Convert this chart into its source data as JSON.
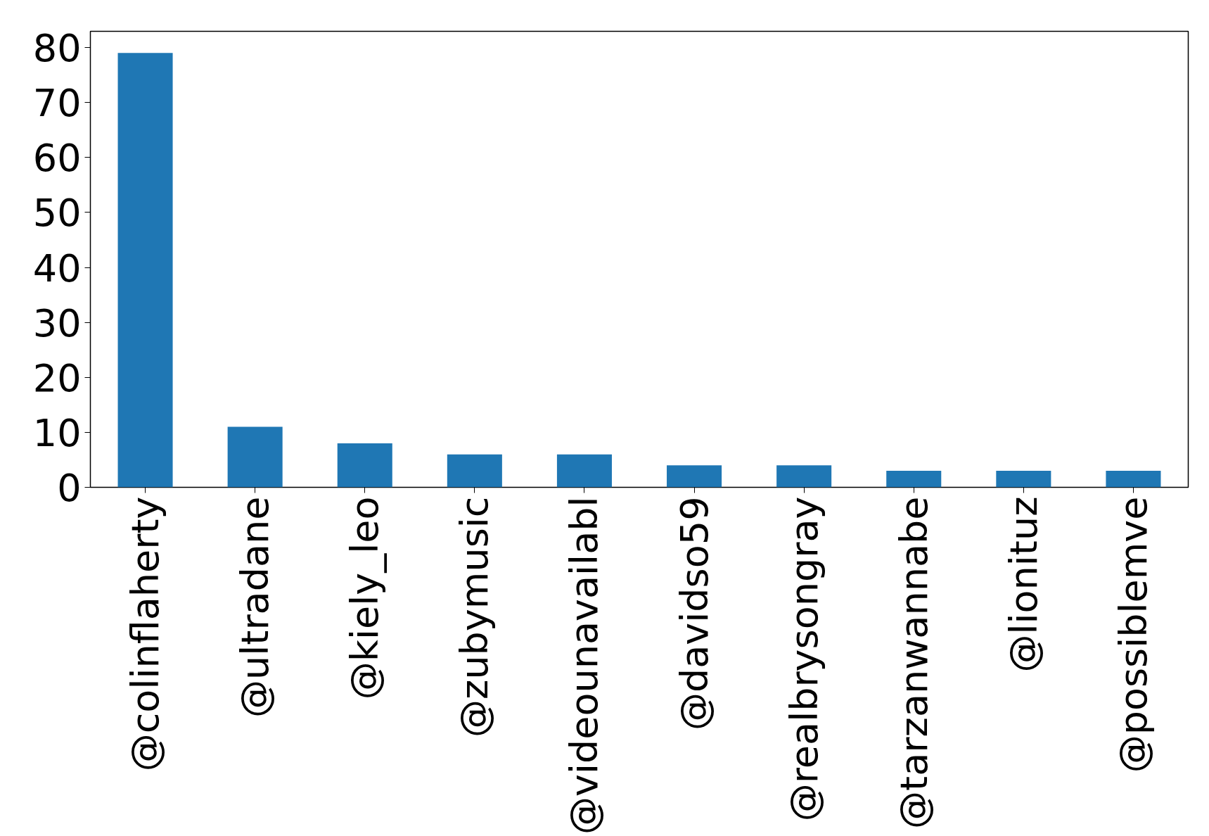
{
  "chart_data": {
    "type": "bar",
    "categories": [
      "@colinflaherty",
      "@ultradane",
      "@kiely_leo",
      "@zubymusic",
      "@videounavailabl",
      "@davidso59",
      "@realbrysongray",
      "@tarzanwannabe",
      "@lionituz",
      "@possiblemve"
    ],
    "values": [
      79,
      11,
      8,
      6,
      6,
      4,
      4,
      3,
      3,
      3
    ],
    "color": "#1f77b4",
    "ylim": [
      0,
      82.95
    ],
    "yticks": [
      0,
      10,
      20,
      30,
      40,
      50,
      60,
      70,
      80
    ],
    "grid": false
  }
}
